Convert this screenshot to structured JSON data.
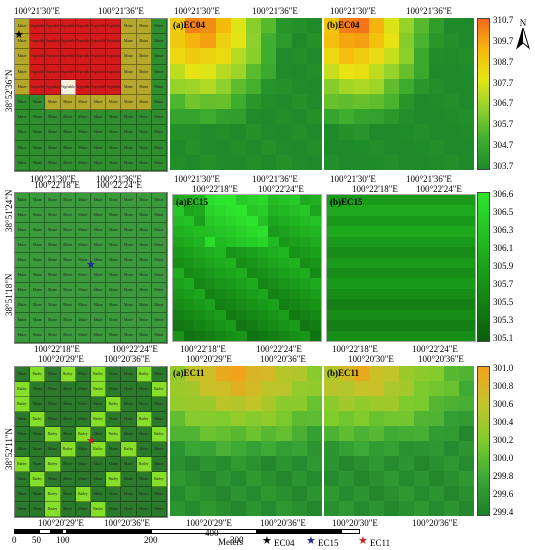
{
  "rows": [
    {
      "id": "ec04",
      "top_coord_labels": [
        "100°21'30\"E",
        "100°21'36\"E"
      ],
      "bottom_coord_labels": [
        "100°21'30\"E",
        "100°21'36\"E"
      ],
      "panel_top_labels": {
        "a": [
          "100°21'30\"E",
          "100°21'36\"E"
        ],
        "b": [
          "100°21'30\"E",
          "100°21'36\"E"
        ]
      },
      "left_lat_label": "38°52'36\"N",
      "panel_a_title": "(a)EC04",
      "panel_b_title": "(b)EC04",
      "colorbar_ticks": [
        "310.7",
        "309.7",
        "308.7",
        "307.7",
        "306.7",
        "305.7",
        "304.7",
        "303.7"
      ],
      "colorbar_colors": [
        "#f26a1b",
        "#f5b80c",
        "#e6e615",
        "#8fd12c",
        "#3fae2e",
        "#1e8a2a"
      ]
    },
    {
      "id": "ec15",
      "top_coord_labels": [
        "100°22'18\"E",
        "100°22'24\"E"
      ],
      "bottom_coord_labels": [
        "100°22'18\"E",
        "100°22'24\"E"
      ],
      "panel_top_labels": {
        "a": [
          "100°22'18\"E",
          "100°22'24\"E"
        ],
        "b": [
          "100°22'18\"E",
          "100°22'24\"E"
        ]
      },
      "left_lat_labels": [
        "38°51'24\"N",
        "38°51'18\"N"
      ],
      "panel_a_title": "(a)EC15",
      "panel_b_title": "(b)EC15",
      "colorbar_ticks": [
        "306.6",
        "306.5",
        "306.3",
        "306.1",
        "305.9",
        "305.7",
        "305.5",
        "305.3",
        "305.1"
      ],
      "colorbar_colors": [
        "#2ee52e",
        "#22b822",
        "#168a16",
        "#0c5c0c"
      ]
    },
    {
      "id": "ec11",
      "top_coord_labels": [
        "100°20'29\"E",
        "100°20'36\"E"
      ],
      "bottom_coord_labels": [
        "100°20'29\"E",
        "100°20'36\"E"
      ],
      "panel_top_labels": {
        "a": [
          "100°20'29\"E",
          "100°20'36\"E"
        ],
        "b": [
          "100°20'30\"E",
          "100°20'36\"E"
        ]
      },
      "left_lat_label": "38°52'11\"N",
      "panel_a_title": "(a)EC11",
      "panel_b_title": "(b)EC11",
      "colorbar_ticks": [
        "301.0",
        "300.8",
        "300.6",
        "300.4",
        "300.2",
        "300.0",
        "299.8",
        "299.6",
        "299.4"
      ],
      "colorbar_colors": [
        "#f2a21c",
        "#c4c42a",
        "#7fcc2c",
        "#3aa836",
        "#1e7f2a"
      ]
    }
  ],
  "crop_labels": {
    "maize": "Maize",
    "barley": "Barley",
    "vegetable": "Vegetable"
  },
  "scalebar": {
    "ticks": [
      "0",
      "50",
      "100",
      "200",
      "300",
      "400"
    ],
    "unit": "Meters"
  },
  "legend": [
    {
      "label": "EC04",
      "color": "#000000"
    },
    {
      "label": "EC15",
      "color": "#1f2a8c"
    },
    {
      "label": "EC11",
      "color": "#c82020"
    }
  ],
  "north_label": "N"
}
